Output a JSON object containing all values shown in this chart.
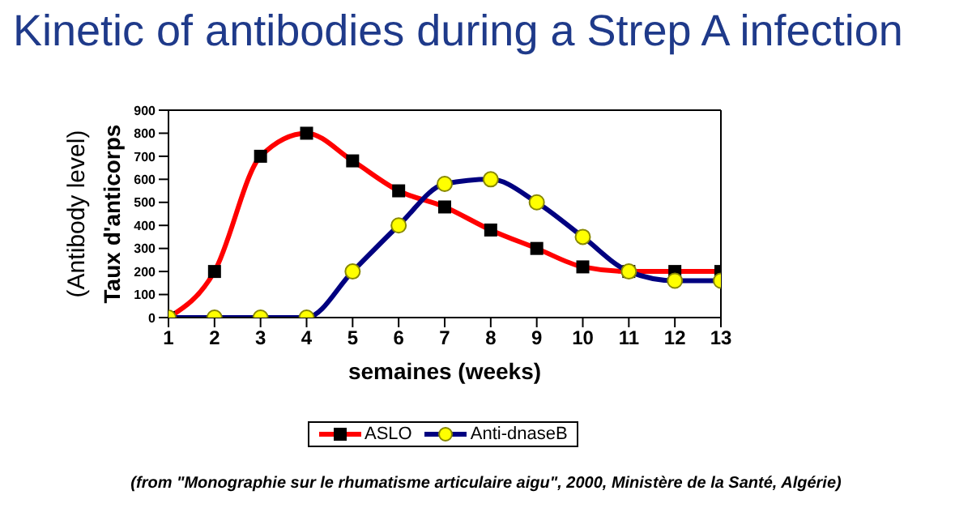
{
  "chart_data": {
    "type": "line",
    "title": "Kinetic of antibodies during a Strep A infection",
    "xlabel": "semaines (weeks)",
    "ylabel": "(Antibody level)\nTaux d'anticorps",
    "annotations": [
      "(from \"Monographie sur le rhumatisme articulaire aigu\", 2000, Ministère de la Santé, Algérie)"
    ],
    "x": [
      1,
      2,
      3,
      4,
      5,
      6,
      7,
      8,
      9,
      10,
      11,
      12,
      13
    ],
    "series": [
      {
        "name": "ASLO",
        "color": "#ff0000",
        "marker": "square",
        "values": [
          0,
          200,
          700,
          800,
          680,
          550,
          480,
          380,
          300,
          220,
          200,
          200,
          200
        ]
      },
      {
        "name": "Anti-dnaseB",
        "color": "#000080",
        "marker": "circle",
        "values": [
          0,
          0,
          0,
          0,
          200,
          400,
          580,
          600,
          500,
          350,
          200,
          160,
          160
        ]
      }
    ],
    "xlim": [
      1,
      13
    ],
    "xticks": [
      1,
      2,
      3,
      4,
      5,
      6,
      7,
      8,
      9,
      10,
      11,
      12,
      13
    ],
    "ylim": [
      0,
      900
    ],
    "yticks": [
      0,
      100,
      200,
      300,
      400,
      500,
      600,
      700,
      800,
      900
    ],
    "grid": false,
    "legend": "bottom"
  }
}
